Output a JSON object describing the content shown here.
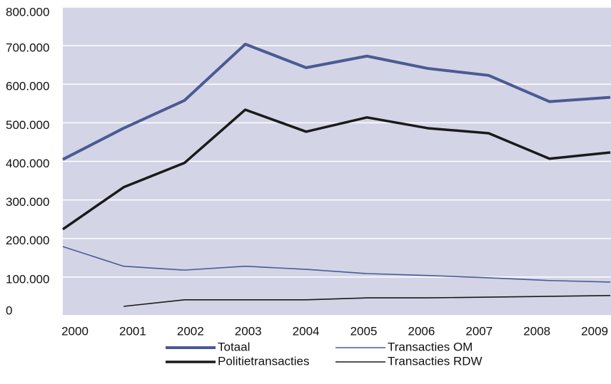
{
  "chart_data": {
    "type": "line",
    "x": [
      "2000",
      "2001",
      "2002",
      "2003",
      "2004",
      "2005",
      "2006",
      "2007",
      "2008",
      "2009"
    ],
    "series": [
      {
        "name": "Totaal",
        "color": "#4a5a94",
        "values": [
          405000,
          486000,
          558000,
          704000,
          643000,
          673000,
          641000,
          623000,
          555000,
          566000
        ]
      },
      {
        "name": "Transacties OM",
        "color": "#4a5a94",
        "values": [
          179000,
          128000,
          118000,
          128000,
          120000,
          109000,
          104000,
          98000,
          91000,
          87000
        ]
      },
      {
        "name": "Politietransacties",
        "color": "#1a1a1a",
        "values": [
          224000,
          333000,
          396000,
          534000,
          477000,
          514000,
          486000,
          473000,
          407000,
          423000
        ]
      },
      {
        "name": "Transacties RDW",
        "color": "#1a1a1a",
        "values": [
          null,
          24000,
          41000,
          41000,
          41000,
          46000,
          46000,
          48000,
          50000,
          52000
        ]
      }
    ],
    "ylim": [
      0,
      800000
    ],
    "yticks": [
      0,
      {
        "value": 100000,
        "label": "100.000"
      },
      {
        "value": 200000,
        "label": "200.000"
      },
      {
        "value": 300000,
        "label": "300.000"
      },
      {
        "value": 400000,
        "label": "400.000"
      },
      {
        "value": 500000,
        "label": "500.000"
      },
      {
        "value": 600000,
        "label": "600.000"
      },
      {
        "value": 700000,
        "label": "700.000"
      },
      {
        "value": 800000,
        "label": "800.000"
      }
    ],
    "grid": true
  }
}
